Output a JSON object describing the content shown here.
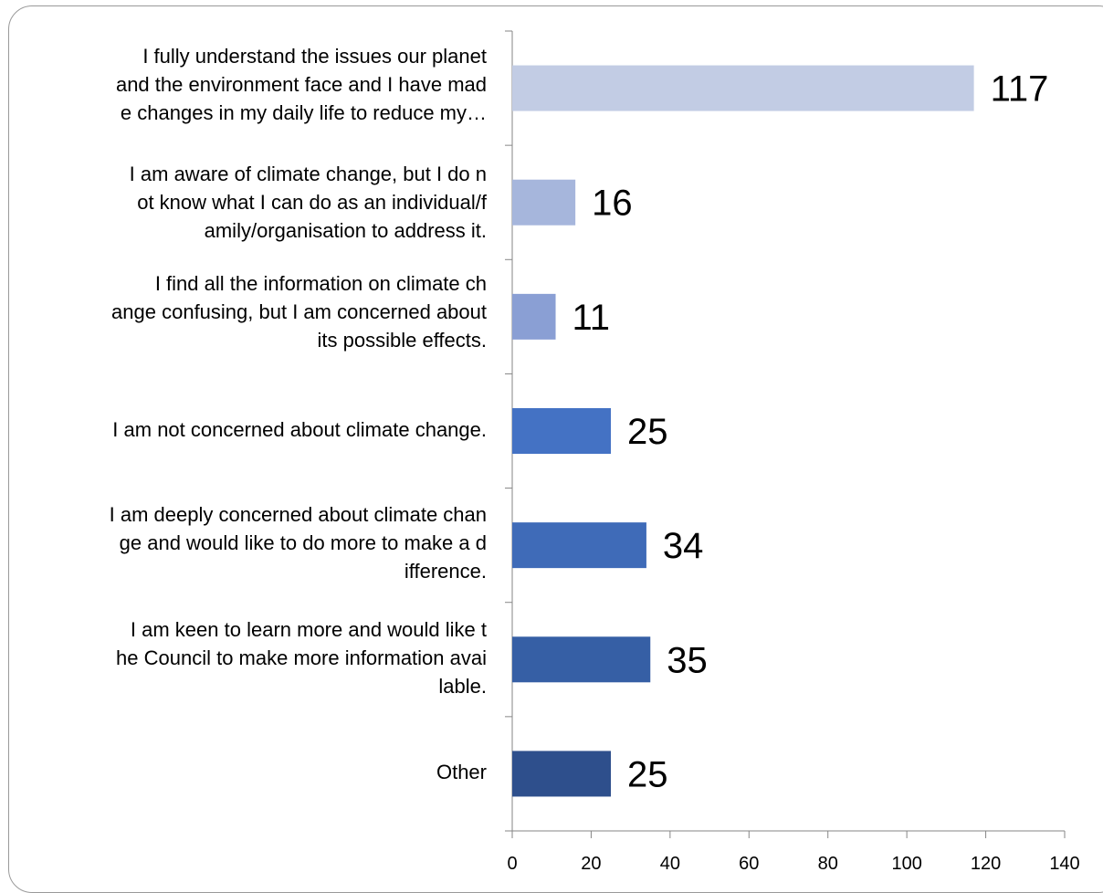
{
  "chart_data": {
    "type": "bar",
    "orientation": "horizontal",
    "categories": [
      "I fully understand the issues our planet\nand the environment face and I have mad\ne changes in my daily life to reduce my…",
      "I am aware of climate change, but I do n\not know what I can do as an individual/f\namily/organisation to address it.",
      "I find all the information on climate ch\nange confusing, but I am concerned about\nits possible effects.",
      "I am not concerned about climate change.",
      "I am deeply concerned about climate chan\nge and would like to do more to make a d\nifference.",
      "I am keen to learn more and would like t\nhe Council to make more information avai\nlable.",
      "Other"
    ],
    "values": [
      117,
      16,
      11,
      25,
      34,
      35,
      25
    ],
    "data_labels": [
      "117",
      "16",
      "11",
      "25",
      "34",
      "35",
      "25"
    ],
    "bar_colors": [
      "#c2cce4",
      "#a6b6dc",
      "#8a9fd4",
      "#4472c4",
      "#3f6bb8",
      "#365fa5",
      "#2e4f8c"
    ],
    "xlim": [
      0,
      140
    ],
    "xticks": [
      0,
      20,
      40,
      60,
      80,
      100,
      120,
      140
    ],
    "xtick_labels": [
      "0",
      "20",
      "40",
      "60",
      "80",
      "100",
      "120",
      "140"
    ],
    "grid": false,
    "legend": "none",
    "title": "",
    "xlabel": "",
    "ylabel": ""
  }
}
